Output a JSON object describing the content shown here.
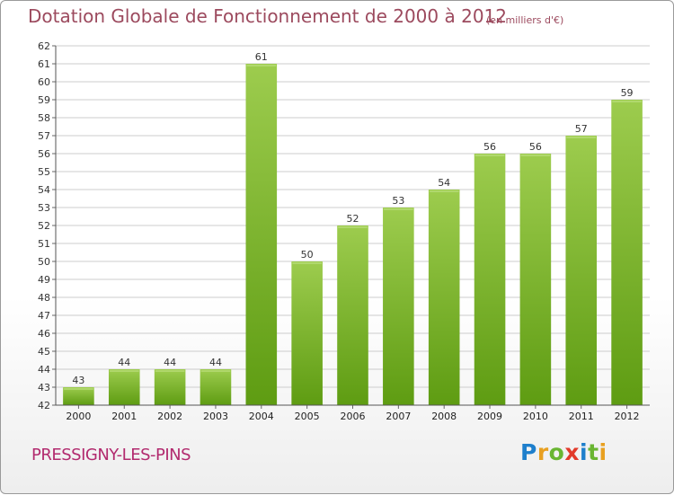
{
  "header": {
    "title": "Dotation Globale de Fonctionnement de 2000 à 2012",
    "subtitle": "(en milliers d'€)"
  },
  "footer": {
    "commune": "PRESSIGNY-LES-PINS",
    "logo_letters": [
      "P",
      "r",
      "o",
      "x",
      "i",
      "t",
      "i"
    ]
  },
  "colors": {
    "bar_light": "#9dcc4e",
    "bar_dark": "#5e9c12",
    "grid": "#cccccc",
    "title": "#9c4a5e",
    "commune": "#b22a6e"
  },
  "chart_data": {
    "type": "bar",
    "title": "Dotation Globale de Fonctionnement de 2000 à 2012",
    "subtitle": "(en milliers d'€)",
    "categories": [
      "2000",
      "2001",
      "2002",
      "2003",
      "2004",
      "2005",
      "2006",
      "2007",
      "2008",
      "2009",
      "2010",
      "2011",
      "2012"
    ],
    "values": [
      43,
      44,
      44,
      44,
      61,
      50,
      52,
      53,
      54,
      56,
      56,
      57,
      59
    ],
    "ylim": [
      42,
      62
    ],
    "yticks": [
      42,
      43,
      44,
      45,
      46,
      47,
      48,
      49,
      50,
      51,
      52,
      53,
      54,
      55,
      56,
      57,
      58,
      59,
      60,
      61,
      62
    ],
    "grid": true,
    "xlabel": "",
    "ylabel": ""
  }
}
